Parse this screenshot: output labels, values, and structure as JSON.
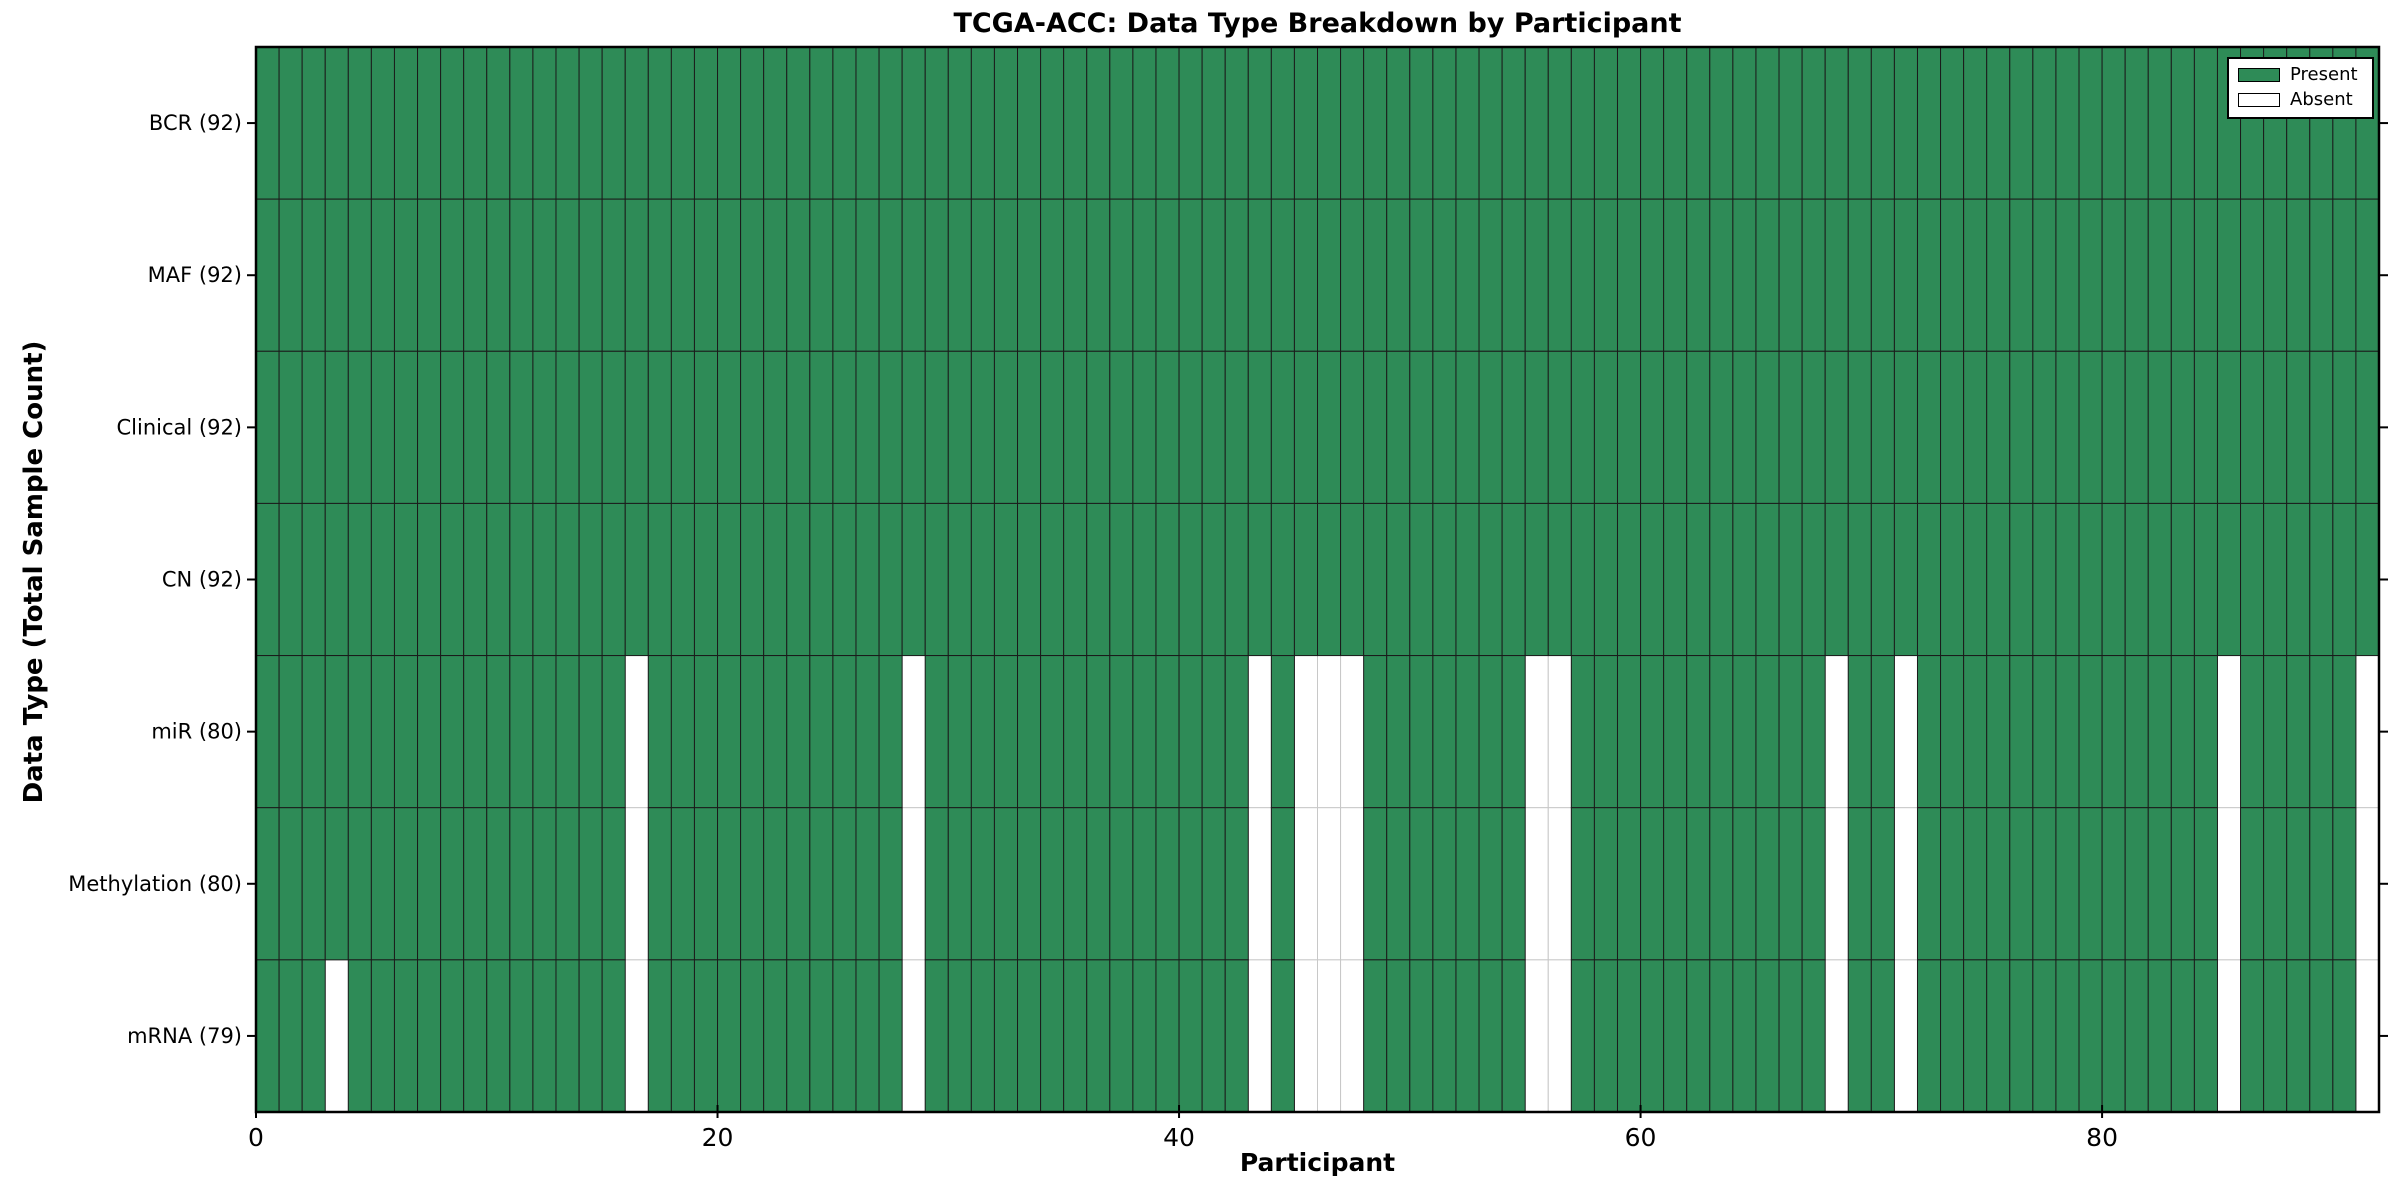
{
  "title": "TCGA-ACC: Data Type Breakdown by Participant",
  "chart_data": {
    "type": "heatmap",
    "title": "TCGA-ACC: Data Type Breakdown by Participant",
    "xlabel": "Participant",
    "ylabel": "Data Type (Total Sample Count)",
    "x_ticks": [
      0,
      20,
      40,
      60,
      80
    ],
    "x_range": [
      0,
      92
    ],
    "n_participants": 92,
    "grid": "cell-edges",
    "rows": [
      {
        "label": "BCR (92)",
        "data_type": "BCR",
        "total_samples": 92,
        "absent_participants": []
      },
      {
        "label": "MAF (92)",
        "data_type": "MAF",
        "total_samples": 92,
        "absent_participants": []
      },
      {
        "label": "Clinical (92)",
        "data_type": "Clinical",
        "total_samples": 92,
        "absent_participants": []
      },
      {
        "label": "CN (92)",
        "data_type": "CN",
        "total_samples": 92,
        "absent_participants": []
      },
      {
        "label": "miR (80)",
        "data_type": "miR",
        "total_samples": 80,
        "absent_participants": [
          16,
          28,
          43,
          45,
          46,
          47,
          55,
          56,
          68,
          71,
          85,
          91
        ]
      },
      {
        "label": "Methylation (80)",
        "data_type": "Methylation",
        "total_samples": 80,
        "absent_participants": [
          16,
          28,
          43,
          45,
          46,
          47,
          55,
          56,
          68,
          71,
          85,
          91
        ]
      },
      {
        "label": "mRNA (79)",
        "data_type": "mRNA",
        "total_samples": 79,
        "absent_participants": [
          3,
          16,
          28,
          43,
          45,
          46,
          47,
          55,
          56,
          68,
          71,
          85,
          91
        ]
      }
    ],
    "legend": [
      {
        "label": "Present",
        "color": "#2e8b57"
      },
      {
        "label": "Absent",
        "color": "#ffffff"
      }
    ],
    "legend_position": "upper right",
    "colors": {
      "present": "#2e8b57",
      "absent": "#ffffff",
      "cell_edge": "#1b1b1b",
      "absent_cell_edge": "#c8c8c8",
      "frame": "#000000",
      "text": "#000000"
    }
  }
}
